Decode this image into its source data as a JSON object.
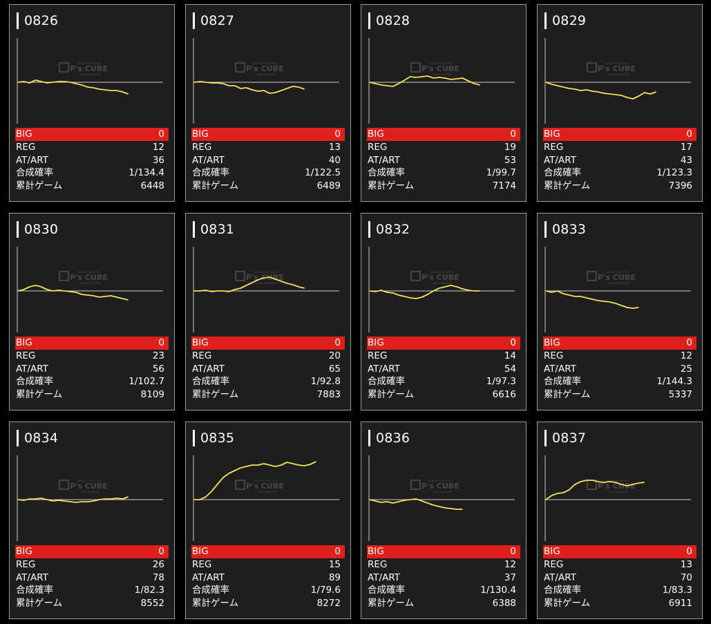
{
  "labels": {
    "big": "BIG",
    "reg": "REG",
    "at": "AT/ART",
    "rate": "合成確率",
    "games": "累計ゲーム"
  },
  "watermark": {
    "brand": "P's CUBE",
    "small_top": "FURUKO SOGO STR",
    "small_bottom": "world's BIGGEST"
  },
  "colors": {
    "card_bg": "#1e1e1e",
    "line": "#f2e35a",
    "big_bar": "#e0201b",
    "baseline": "#cfcfcf"
  },
  "machines": [
    {
      "no": "0826",
      "big": "0",
      "reg": "12",
      "at": "36",
      "rate": "1/134.4",
      "games": "6448",
      "trend": [
        0,
        1,
        -1,
        3,
        1,
        -1,
        0,
        1,
        1,
        0,
        -2,
        -4,
        -7,
        -8,
        -10,
        -11,
        -12,
        -12,
        -14,
        -17
      ]
    },
    {
      "no": "0827",
      "big": "0",
      "reg": "13",
      "at": "40",
      "rate": "1/122.5",
      "games": "6489",
      "trend": [
        0,
        1,
        0,
        -1,
        -1,
        -2,
        -5,
        -5,
        -9,
        -8,
        -11,
        -13,
        -12,
        -16,
        -15,
        -12,
        -9,
        -6,
        -7,
        -10
      ]
    },
    {
      "no": "0828",
      "big": "0",
      "reg": "19",
      "at": "53",
      "rate": "1/99.7",
      "games": "7174",
      "trend": [
        0,
        -2,
        -4,
        -5,
        -6,
        -2,
        3,
        8,
        7,
        8,
        9,
        6,
        7,
        6,
        4,
        5,
        6,
        2,
        -2,
        -4
      ]
    },
    {
      "no": "0829",
      "big": "0",
      "reg": "17",
      "at": "43",
      "rate": "1/123.3",
      "games": "7396",
      "trend": [
        0,
        -3,
        -5,
        -7,
        -9,
        -10,
        -12,
        -11,
        -13,
        -14,
        -16,
        -17,
        -18,
        -19,
        -22,
        -24,
        -20,
        -15,
        -17,
        -14
      ]
    },
    {
      "no": "0830",
      "big": "0",
      "reg": "23",
      "at": "56",
      "rate": "1/102.7",
      "games": "8109",
      "trend": [
        0,
        2,
        6,
        8,
        6,
        2,
        0,
        1,
        0,
        -1,
        -2,
        -5,
        -6,
        -7,
        -9,
        -8,
        -7,
        -9,
        -11,
        -13
      ]
    },
    {
      "no": "0831",
      "big": "0",
      "reg": "20",
      "at": "65",
      "rate": "1/92.8",
      "games": "7883",
      "trend": [
        0,
        0,
        1,
        -1,
        0,
        0,
        -1,
        2,
        4,
        8,
        12,
        16,
        19,
        20,
        17,
        14,
        11,
        9,
        6,
        4
      ]
    },
    {
      "no": "0832",
      "big": "0",
      "reg": "14",
      "at": "54",
      "rate": "1/97.3",
      "games": "6616",
      "trend": [
        0,
        -1,
        1,
        -2,
        -3,
        -6,
        -8,
        -10,
        -11,
        -9,
        -5,
        0,
        4,
        6,
        8,
        6,
        3,
        1,
        0,
        0
      ]
    },
    {
      "no": "0833",
      "big": "0",
      "reg": "12",
      "at": "25",
      "rate": "1/144.3",
      "games": "5337",
      "trend": [
        0,
        -2,
        0,
        -4,
        -6,
        -8,
        -8,
        -10,
        -12,
        -14,
        -15,
        -16,
        -18,
        -21,
        -24,
        -25,
        -24
      ]
    },
    {
      "no": "0834",
      "big": "0",
      "reg": "26",
      "at": "78",
      "rate": "1/82.3",
      "games": "8552",
      "trend": [
        0,
        -1,
        1,
        1,
        2,
        0,
        -2,
        -1,
        -2,
        -3,
        -4,
        -3,
        -3,
        -2,
        0,
        1,
        1,
        2,
        1,
        4
      ]
    },
    {
      "no": "0835",
      "big": "0",
      "reg": "15",
      "at": "89",
      "rate": "1/79.6",
      "games": "8272",
      "trend": [
        0,
        0,
        4,
        12,
        22,
        32,
        38,
        42,
        46,
        48,
        50,
        50,
        52,
        50,
        48,
        50,
        54,
        52,
        50,
        49,
        51,
        55
      ]
    },
    {
      "no": "0836",
      "big": "0",
      "reg": "12",
      "at": "37",
      "rate": "1/130.4",
      "games": "6388",
      "trend": [
        0,
        -2,
        -4,
        -3,
        -5,
        -3,
        -1,
        0,
        1,
        -2,
        -5,
        -8,
        -10,
        -12,
        -13,
        -14,
        -14
      ]
    },
    {
      "no": "0837",
      "big": "0",
      "reg": "13",
      "at": "70",
      "rate": "1/83.3",
      "games": "6911",
      "trend": [
        0,
        6,
        9,
        10,
        14,
        22,
        26,
        28,
        28,
        26,
        25,
        26,
        25,
        22,
        20,
        22,
        24,
        25
      ]
    }
  ]
}
